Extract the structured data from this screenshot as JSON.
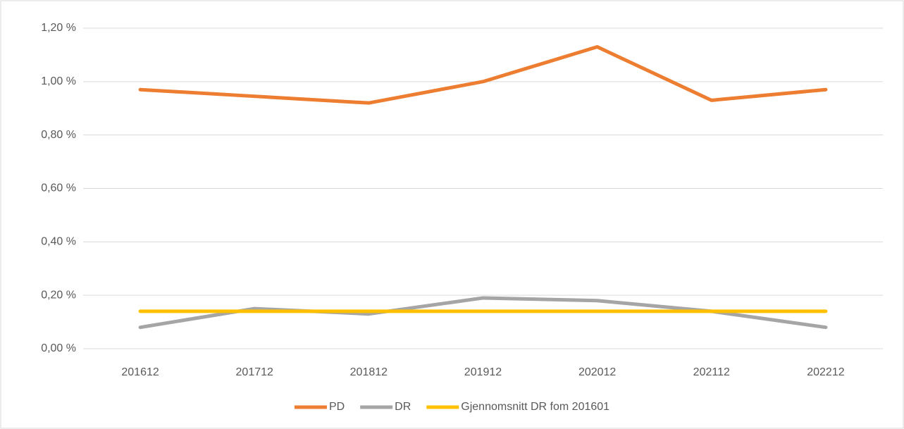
{
  "chart_data": {
    "type": "line",
    "categories": [
      "201612",
      "201712",
      "201812",
      "201912",
      "202012",
      "202112",
      "202212"
    ],
    "series": [
      {
        "name": "PD",
        "color": "#ED7D31",
        "values": [
          0.97,
          0.945,
          0.92,
          1.0,
          1.13,
          0.93,
          0.97
        ]
      },
      {
        "name": "DR",
        "color": "#A5A5A5",
        "values": [
          0.08,
          0.15,
          0.13,
          0.19,
          0.18,
          0.14,
          0.08
        ]
      },
      {
        "name": "Gjennomsnitt DR fom 201601",
        "color": "#FFC000",
        "values": [
          0.14,
          0.14,
          0.14,
          0.14,
          0.14,
          0.14,
          0.14
        ]
      }
    ],
    "ylim": [
      0,
      1.2
    ],
    "yticks": [
      {
        "value": 0,
        "label": "0,00 %"
      },
      {
        "value": 0.2,
        "label": "0,20 %"
      },
      {
        "value": 0.4,
        "label": "0,40 %"
      },
      {
        "value": 0.6,
        "label": "0,60 %"
      },
      {
        "value": 0.8,
        "label": "0,80 %"
      },
      {
        "value": 1.0,
        "label": "1,00 %"
      },
      {
        "value": 1.2,
        "label": "1,20 %"
      }
    ],
    "grid": true,
    "legend": "bottom"
  }
}
